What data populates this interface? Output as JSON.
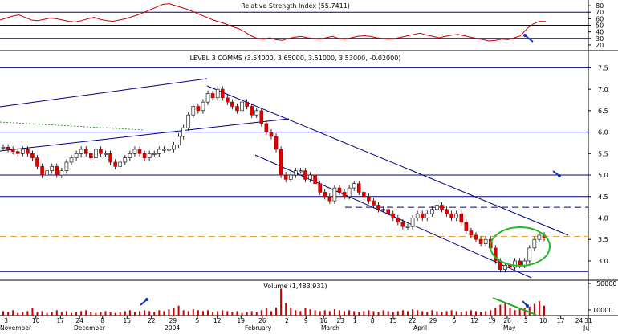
{
  "chart_data": [
    {
      "panel": "rsi",
      "type": "line",
      "title": "Relative Strength Index (55.7411)",
      "yticks": [
        "80",
        "70",
        "60",
        "50",
        "40",
        "30",
        "20"
      ],
      "ylim": [
        15,
        85
      ],
      "reference_lines": [
        70,
        50,
        30
      ],
      "series": [
        {
          "values": [
            58,
            61,
            64,
            66,
            62,
            58,
            57,
            59,
            61,
            60,
            58,
            56,
            55,
            57,
            60,
            62,
            59,
            57,
            56,
            58,
            60,
            63,
            66,
            70,
            74,
            78,
            82,
            83,
            80,
            77,
            74,
            70,
            66,
            62,
            58,
            55,
            52,
            48,
            45,
            40,
            34,
            30,
            29,
            31,
            28,
            27,
            30,
            32,
            33,
            31,
            30,
            29,
            31,
            33,
            30,
            29,
            31,
            33,
            34,
            33,
            31,
            30,
            29,
            30,
            32,
            34,
            36,
            38,
            35,
            33,
            31,
            33,
            35,
            36,
            34,
            32,
            30,
            28,
            26,
            27,
            29,
            28,
            31,
            34,
            45,
            52,
            56,
            55.7
          ]
        }
      ]
    },
    {
      "panel": "price",
      "type": "candlestick",
      "title": "LEVEL 3 COMMS (3.54000, 3.65000, 3.51000, 3.53000, -0.02000)",
      "yticks": [
        "7.5",
        "7.0",
        "6.5",
        "6.0",
        "5.5",
        "5.0",
        "4.5",
        "4.0",
        "3.5",
        "3.0"
      ],
      "ylim": [
        2.55,
        7.9
      ],
      "horizontal_lines": [
        7.5,
        6.0,
        5.0,
        4.5,
        2.75
      ],
      "dashed_lines": [
        4.25,
        3.57
      ],
      "series": [
        {
          "close": [
            5.65,
            5.6,
            5.55,
            5.5,
            5.6,
            5.5,
            5.4,
            5.2,
            5.0,
            5.1,
            5.2,
            5.0,
            5.1,
            5.3,
            5.4,
            5.5,
            5.6,
            5.5,
            5.4,
            5.6,
            5.5,
            5.5,
            5.3,
            5.2,
            5.3,
            5.4,
            5.5,
            5.6,
            5.5,
            5.4,
            5.5,
            5.5,
            5.6,
            5.6,
            5.6,
            5.7,
            5.9,
            6.1,
            6.4,
            6.6,
            6.5,
            6.7,
            6.9,
            6.8,
            7.0,
            6.8,
            6.7,
            6.6,
            6.5,
            6.7,
            6.6,
            6.4,
            6.5,
            6.2,
            6.0,
            5.9,
            5.6,
            5.0,
            4.9,
            5.0,
            5.1,
            5.1,
            4.9,
            5.0,
            4.8,
            4.6,
            4.5,
            4.4,
            4.7,
            4.6,
            4.5,
            4.7,
            4.8,
            4.6,
            4.5,
            4.4,
            4.3,
            4.2,
            4.2,
            4.1,
            4.0,
            3.9,
            3.8,
            3.8,
            4.0,
            4.1,
            4.0,
            4.1,
            4.2,
            4.3,
            4.2,
            4.1,
            4.0,
            4.1,
            3.9,
            3.7,
            3.6,
            3.5,
            3.4,
            3.5,
            3.3,
            3.0,
            2.8,
            2.9,
            2.85,
            3.0,
            2.9,
            3.0,
            3.3,
            3.5,
            3.6,
            3.53
          ]
        }
      ]
    },
    {
      "panel": "volume",
      "type": "bar",
      "title": "Volume (1,483,931)",
      "yticks": [
        "50000",
        "10000"
      ],
      "series": [
        {
          "values": [
            5,
            4,
            6,
            3,
            4,
            5,
            8,
            4,
            5,
            3,
            4,
            6,
            4,
            5,
            3,
            4,
            5,
            6,
            4,
            3,
            4,
            5,
            4,
            3,
            4,
            5,
            6,
            4,
            5,
            6,
            5,
            4,
            6,
            5,
            7,
            8,
            11,
            6,
            5,
            7,
            6,
            5,
            6,
            4,
            5,
            6,
            5,
            4,
            5,
            3,
            4,
            5,
            4,
            6,
            8,
            5,
            9,
            30,
            14,
            9,
            6,
            5,
            8,
            7,
            6,
            5,
            6,
            5,
            7,
            6,
            5,
            6,
            5,
            4,
            5,
            6,
            5,
            4,
            6,
            5,
            4,
            5,
            6,
            5,
            7,
            6,
            5,
            4,
            6,
            5,
            4,
            5,
            6,
            5,
            4,
            5,
            6,
            5,
            4,
            5,
            6,
            8,
            12,
            14,
            9,
            6,
            7,
            8,
            10,
            13,
            16,
            11
          ]
        }
      ]
    },
    {
      "panel": "x-axis",
      "type": "axis",
      "day_ticks": [
        "3",
        "10",
        "17",
        "24",
        "8",
        "15",
        "22",
        "29",
        "5",
        "12",
        "19",
        "26",
        "2",
        "9",
        "16",
        "23",
        "1",
        "8",
        "15",
        "22",
        "29",
        "5",
        "12",
        "19",
        "26",
        "3",
        "10",
        "17",
        "24",
        "31"
      ],
      "month_labels": [
        "November",
        "December",
        "2004",
        "February",
        "March",
        "April",
        "May",
        "Ju"
      ]
    }
  ]
}
